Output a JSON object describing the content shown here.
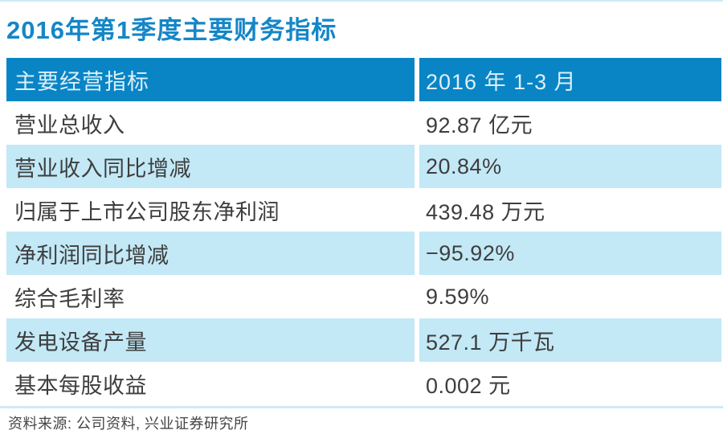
{
  "page": {
    "title": "2016年第1季度主要财务指标",
    "source": "资料来源: 公司资料, 兴业证券研究所"
  },
  "colors": {
    "title_color": "#1586C7",
    "header_bg": "#0985C6",
    "header_text": "#DDEFF8",
    "row_alt_bg": "#C3E8F6",
    "row_text": "#3E3E3E",
    "line_color": "#CFE9F6",
    "source_text": "#454545"
  },
  "chart_data": {
    "type": "table",
    "title": "2016年第1季度主要财务指标",
    "columns": [
      "主要经营指标",
      "2016 年 1-3 月"
    ],
    "rows": [
      [
        "营业总收入",
        "92.87 亿元"
      ],
      [
        "营业收入同比增减",
        "20.84%"
      ],
      [
        "归属于上市公司股东净利润",
        "439.48 万元"
      ],
      [
        "净利润同比增减",
        "−95.92%"
      ],
      [
        "综合毛利率",
        "9.59%"
      ],
      [
        "发电设备产量",
        "527.1 万千瓦"
      ],
      [
        "基本每股收益",
        "0.002 元"
      ]
    ],
    "source": "资料来源: 公司资料, 兴业证券研究所",
    "layout": {
      "legend": "none",
      "grid": "off",
      "zebra_striping": true
    }
  }
}
